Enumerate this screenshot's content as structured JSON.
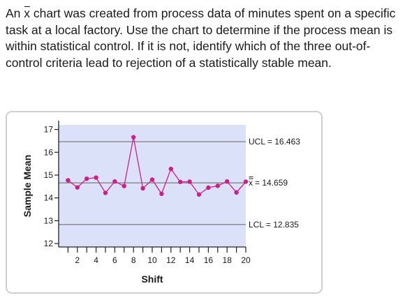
{
  "question": {
    "text_before": "An ",
    "xbar_symbol": "x",
    "text_after": " chart was created from process data of minutes spent on a specific task at a local factory. Use the chart to determine if the process mean is within statistical control. If it is not, identify which of the three out-of-control criteria lead to rejection of a statistically stable mean."
  },
  "chart_data": {
    "type": "line",
    "xlabel": "Shift",
    "ylabel": "Sample Mean",
    "xlim": [
      0,
      20
    ],
    "ylim": [
      11.85,
      17.2
    ],
    "xticks": [
      2,
      4,
      6,
      8,
      10,
      12,
      14,
      16,
      18,
      20
    ],
    "xtick_labels": [
      "2",
      "4",
      "6",
      "8",
      "10",
      "12",
      "14",
      "16",
      "18",
      "20"
    ],
    "yticks": [
      12,
      13,
      14,
      15,
      16,
      17
    ],
    "ytick_labels": [
      "12",
      "13",
      "14",
      "15",
      "16",
      "17"
    ],
    "grid": false,
    "series": [
      {
        "x": [
          1,
          2,
          3,
          4,
          5,
          6,
          7,
          8,
          9,
          10,
          11,
          12,
          13,
          14,
          15,
          16,
          17,
          18,
          19,
          20
        ],
        "values": [
          14.77,
          14.46,
          14.84,
          14.89,
          14.22,
          14.72,
          14.52,
          16.66,
          14.42,
          14.8,
          14.18,
          15.27,
          14.7,
          14.71,
          14.15,
          14.45,
          14.53,
          14.72,
          14.24,
          14.71
        ],
        "color": "#cc1f8a"
      }
    ],
    "control_lines": [
      {
        "label": "UCL",
        "value": 16.463,
        "text": "UCL  =  16.463"
      },
      {
        "label": "center",
        "value": 14.659,
        "text": " =  14.659"
      },
      {
        "label": "LCL",
        "value": 12.835,
        "text": "LCL  =  12.835"
      }
    ],
    "center_symbol": "x",
    "colors": {
      "plot_bg": "#dae1f8",
      "control_line": "#8c8c8c",
      "series": "#cc1f8a"
    }
  }
}
